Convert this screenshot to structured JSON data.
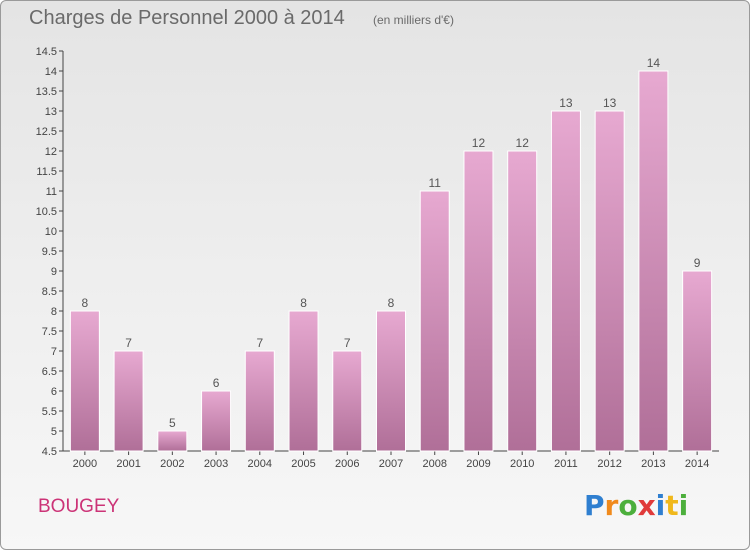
{
  "header": {
    "title": "Charges de Personnel 2000 à 2014",
    "subtitle": "(en milliers d'€)"
  },
  "footer": {
    "commune": "BOUGEY",
    "logo_text": "Proxiti",
    "logo_letters": [
      {
        "ch": "P",
        "color": "#2f7fd0"
      },
      {
        "ch": "r",
        "color": "#f08a1c"
      },
      {
        "ch": "o",
        "color": "#4caf3c"
      },
      {
        "ch": "x",
        "color": "#e03a3a"
      },
      {
        "ch": "i",
        "color": "#2f7fd0"
      },
      {
        "ch": "t",
        "color": "#f0b81c"
      },
      {
        "ch": "i",
        "color": "#4caf3c"
      }
    ]
  },
  "colors": {
    "bar_top": "#e7a9d1",
    "bar_bottom": "#b06f98",
    "commune": "#cc3377",
    "title": "#6a6a6a"
  },
  "chart_data": {
    "type": "bar",
    "title": "Charges de Personnel 2000 à 2014",
    "subtitle": "(en milliers d'€)",
    "xlabel": "",
    "ylabel": "",
    "categories": [
      "2000",
      "2001",
      "2002",
      "2003",
      "2004",
      "2005",
      "2006",
      "2007",
      "2008",
      "2009",
      "2010",
      "2011",
      "2012",
      "2013",
      "2014"
    ],
    "values": [
      8,
      7,
      5,
      6,
      7,
      8,
      7,
      8,
      11,
      12,
      12,
      13,
      13,
      14,
      9
    ],
    "ylim": [
      4.5,
      14.5
    ],
    "yticks": [
      "4.5",
      "5",
      "5.5",
      "6",
      "6.5",
      "7",
      "7.5",
      "8",
      "8.5",
      "9",
      "9.5",
      "10",
      "10.5",
      "11",
      "11.5",
      "12",
      "12.5",
      "13",
      "13.5",
      "14",
      "14.5"
    ],
    "grid": false,
    "legend": "none"
  }
}
